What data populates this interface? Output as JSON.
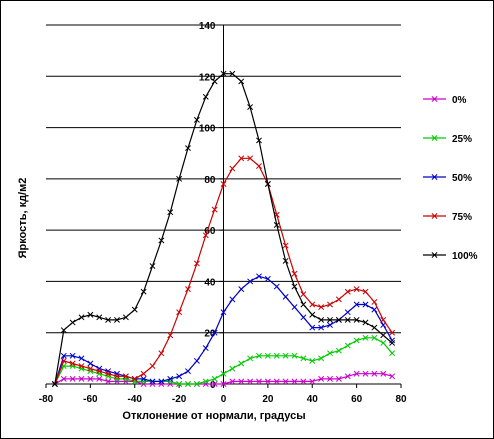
{
  "chart_data": {
    "type": "line",
    "xlabel": "Отклонение от нормали, градусы",
    "ylabel": "Яркость, кд/м2",
    "xlim": [
      -80,
      80
    ],
    "ylim": [
      0,
      140
    ],
    "x_ticks": [
      -80,
      -60,
      -40,
      -20,
      0,
      20,
      40,
      60,
      80
    ],
    "y_ticks": [
      0,
      20,
      40,
      60,
      80,
      100,
      120,
      140
    ],
    "y_tick_labels": [
      "0",
      "20",
      "40",
      "60",
      "80",
      "100",
      "120",
      "140"
    ],
    "x_tick_labels": [
      "-80",
      "-60",
      "-40",
      "-20",
      "0",
      "20",
      "40",
      "60",
      "80"
    ],
    "grid": "horizontal",
    "legend_position": "right",
    "marker": "x",
    "series": [
      {
        "name": "0%",
        "color": "#cc00cc",
        "points": [
          [
            -76,
            0
          ],
          [
            -72,
            2
          ],
          [
            -68,
            2
          ],
          [
            -64,
            2
          ],
          [
            -60,
            2
          ],
          [
            -56,
            2
          ],
          [
            -52,
            1
          ],
          [
            -48,
            1
          ],
          [
            -44,
            1
          ],
          [
            -40,
            1
          ],
          [
            -36,
            0
          ],
          [
            -32,
            0
          ],
          [
            -28,
            0
          ],
          [
            -24,
            0
          ],
          [
            -20,
            0
          ],
          [
            -16,
            0
          ],
          [
            -12,
            0
          ],
          [
            -8,
            0
          ],
          [
            -4,
            0
          ],
          [
            0,
            0
          ],
          [
            4,
            1
          ],
          [
            8,
            1
          ],
          [
            12,
            1
          ],
          [
            16,
            1
          ],
          [
            20,
            1
          ],
          [
            24,
            1
          ],
          [
            28,
            1
          ],
          [
            32,
            1
          ],
          [
            36,
            1
          ],
          [
            40,
            1
          ],
          [
            44,
            2
          ],
          [
            48,
            2
          ],
          [
            52,
            2
          ],
          [
            56,
            3
          ],
          [
            60,
            4
          ],
          [
            64,
            4
          ],
          [
            68,
            4
          ],
          [
            72,
            4
          ],
          [
            76,
            3
          ]
        ]
      },
      {
        "name": "25%",
        "color": "#00cc00",
        "points": [
          [
            -76,
            0
          ],
          [
            -72,
            7
          ],
          [
            -68,
            7
          ],
          [
            -64,
            6
          ],
          [
            -60,
            5
          ],
          [
            -56,
            4
          ],
          [
            -52,
            3
          ],
          [
            -48,
            2
          ],
          [
            -44,
            2
          ],
          [
            -40,
            1
          ],
          [
            -36,
            1
          ],
          [
            -32,
            1
          ],
          [
            -28,
            1
          ],
          [
            -24,
            1
          ],
          [
            -20,
            0
          ],
          [
            -16,
            0
          ],
          [
            -12,
            0
          ],
          [
            -8,
            1
          ],
          [
            -4,
            2
          ],
          [
            0,
            4
          ],
          [
            4,
            6
          ],
          [
            8,
            8
          ],
          [
            12,
            10
          ],
          [
            16,
            11
          ],
          [
            20,
            11
          ],
          [
            24,
            11
          ],
          [
            28,
            11
          ],
          [
            32,
            11
          ],
          [
            36,
            10
          ],
          [
            40,
            9
          ],
          [
            44,
            10
          ],
          [
            48,
            12
          ],
          [
            52,
            13
          ],
          [
            56,
            15
          ],
          [
            60,
            17
          ],
          [
            64,
            18
          ],
          [
            68,
            18
          ],
          [
            72,
            16
          ],
          [
            76,
            12
          ]
        ]
      },
      {
        "name": "50%",
        "color": "#0000cc",
        "points": [
          [
            -76,
            0
          ],
          [
            -72,
            11
          ],
          [
            -68,
            11
          ],
          [
            -64,
            10
          ],
          [
            -60,
            8
          ],
          [
            -56,
            6
          ],
          [
            -52,
            5
          ],
          [
            -48,
            4
          ],
          [
            -44,
            3
          ],
          [
            -40,
            2
          ],
          [
            -36,
            2
          ],
          [
            -32,
            1
          ],
          [
            -28,
            1
          ],
          [
            -24,
            2
          ],
          [
            -20,
            3
          ],
          [
            -16,
            5
          ],
          [
            -12,
            9
          ],
          [
            -8,
            14
          ],
          [
            -4,
            20
          ],
          [
            0,
            28
          ],
          [
            4,
            33
          ],
          [
            8,
            37
          ],
          [
            12,
            40
          ],
          [
            16,
            42
          ],
          [
            20,
            41
          ],
          [
            24,
            38
          ],
          [
            28,
            34
          ],
          [
            32,
            30
          ],
          [
            36,
            26
          ],
          [
            40,
            22
          ],
          [
            44,
            22
          ],
          [
            48,
            23
          ],
          [
            52,
            25
          ],
          [
            56,
            28
          ],
          [
            60,
            31
          ],
          [
            64,
            31
          ],
          [
            68,
            29
          ],
          [
            72,
            23
          ],
          [
            76,
            17
          ]
        ]
      },
      {
        "name": "75%",
        "color": "#cc0000",
        "points": [
          [
            -76,
            0
          ],
          [
            -72,
            9
          ],
          [
            -68,
            8
          ],
          [
            -64,
            7
          ],
          [
            -60,
            6
          ],
          [
            -56,
            5
          ],
          [
            -52,
            4
          ],
          [
            -48,
            3
          ],
          [
            -44,
            3
          ],
          [
            -40,
            2
          ],
          [
            -36,
            4
          ],
          [
            -32,
            7
          ],
          [
            -28,
            12
          ],
          [
            -24,
            19
          ],
          [
            -20,
            28
          ],
          [
            -16,
            37
          ],
          [
            -12,
            47
          ],
          [
            -8,
            58
          ],
          [
            -4,
            68
          ],
          [
            0,
            78
          ],
          [
            4,
            84
          ],
          [
            8,
            88
          ],
          [
            12,
            88
          ],
          [
            16,
            85
          ],
          [
            20,
            78
          ],
          [
            24,
            66
          ],
          [
            28,
            54
          ],
          [
            32,
            43
          ],
          [
            36,
            35
          ],
          [
            40,
            31
          ],
          [
            44,
            30
          ],
          [
            48,
            31
          ],
          [
            52,
            33
          ],
          [
            56,
            36
          ],
          [
            60,
            37
          ],
          [
            64,
            36
          ],
          [
            68,
            32
          ],
          [
            72,
            25
          ],
          [
            76,
            20
          ]
        ]
      },
      {
        "name": "100%",
        "color": "#000000",
        "points": [
          [
            -76,
            0
          ],
          [
            -72,
            21
          ],
          [
            -68,
            24
          ],
          [
            -64,
            26
          ],
          [
            -60,
            27
          ],
          [
            -56,
            26
          ],
          [
            -52,
            25
          ],
          [
            -48,
            25
          ],
          [
            -44,
            26
          ],
          [
            -40,
            29
          ],
          [
            -36,
            36
          ],
          [
            -32,
            46
          ],
          [
            -28,
            56
          ],
          [
            -24,
            67
          ],
          [
            -20,
            80
          ],
          [
            -16,
            92
          ],
          [
            -12,
            103
          ],
          [
            -8,
            112
          ],
          [
            -4,
            118
          ],
          [
            0,
            121
          ],
          [
            4,
            121
          ],
          [
            8,
            118
          ],
          [
            12,
            108
          ],
          [
            16,
            95
          ],
          [
            20,
            78
          ],
          [
            24,
            62
          ],
          [
            28,
            48
          ],
          [
            32,
            38
          ],
          [
            36,
            31
          ],
          [
            40,
            27
          ],
          [
            44,
            25
          ],
          [
            48,
            25
          ],
          [
            52,
            25
          ],
          [
            56,
            25
          ],
          [
            60,
            25
          ],
          [
            64,
            24
          ],
          [
            68,
            22
          ],
          [
            72,
            19
          ],
          [
            76,
            16
          ]
        ]
      }
    ]
  }
}
